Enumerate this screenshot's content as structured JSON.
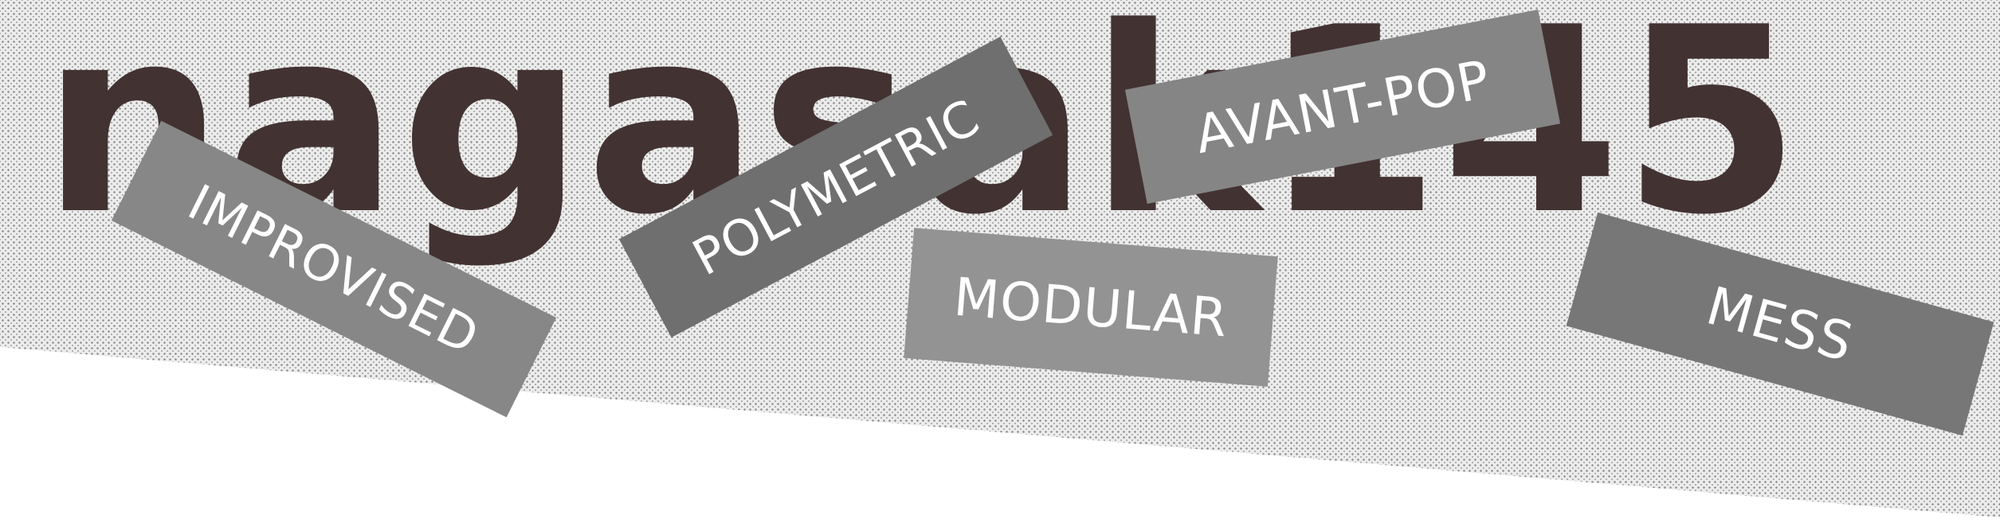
{
  "banner": {
    "headline": "nagasak145",
    "colors": {
      "headline": "#433232",
      "background": "#ffffff",
      "pattern_base": "#ececec",
      "pattern_dot": "#8c8c8c"
    },
    "tags": [
      {
        "label": "IMPROVISED",
        "color": "#878787"
      },
      {
        "label": "POLYMETRIC",
        "color": "#6f6f6f"
      },
      {
        "label": "AVANT-POP",
        "color": "#858585"
      },
      {
        "label": "MODULAR",
        "color": "#939393"
      },
      {
        "label": "MESS",
        "color": "#777777"
      }
    ]
  }
}
